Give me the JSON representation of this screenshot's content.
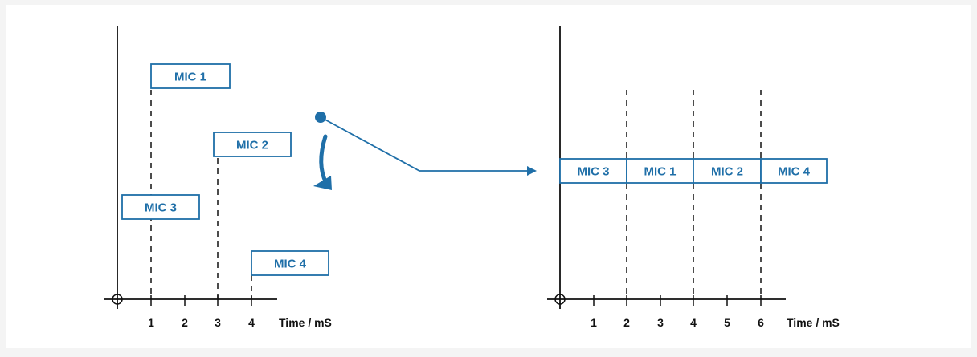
{
  "colors": {
    "accent": "#1f6fa8",
    "axis": "#111111",
    "panel_bg": "#ffffff",
    "page_bg": "#f4f4f4"
  },
  "left_diagram": {
    "ticks": [
      "1",
      "2",
      "3",
      "4"
    ],
    "axis_title": "Time / mS",
    "mics": [
      {
        "label": "MIC 1",
        "time": 1
      },
      {
        "label": "MIC 2",
        "time": 3
      },
      {
        "label": "MIC 3",
        "time": 1
      },
      {
        "label": "MIC 4",
        "time": 4
      }
    ]
  },
  "right_diagram": {
    "ticks": [
      "1",
      "2",
      "3",
      "4",
      "5",
      "6"
    ],
    "axis_title": "Time / mS",
    "slots": [
      "MIC 3",
      "MIC 1",
      "MIC 2",
      "MIC 4"
    ]
  },
  "icons": {
    "switch": "switch-pivot-icon",
    "rotate": "curved-arrow-icon",
    "output": "arrow-right-icon"
  }
}
